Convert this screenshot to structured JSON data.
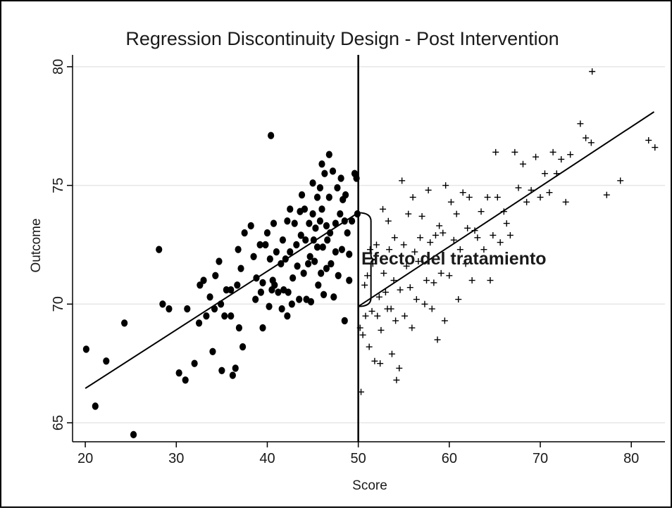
{
  "chart_data": {
    "type": "scatter",
    "title": "Regression Discontinuity Design - Post Intervention",
    "xlabel": "Score",
    "ylabel": "Outcome",
    "xlim": [
      18.6,
      83.7
    ],
    "ylim": [
      64.2,
      80.5
    ],
    "xticks": [
      20,
      30,
      40,
      50,
      60,
      70,
      80
    ],
    "yticks": [
      65,
      70,
      75,
      80
    ],
    "grid": "horizontal",
    "cutoff": 50,
    "annotation": "Efecto del tratamiento",
    "colors": {
      "marker": "#000000",
      "grid": "#e6e6e6",
      "background": "#ffffff"
    },
    "series": [
      {
        "marker": "filled-circle",
        "points": [
          [
            20.1,
            68.1
          ],
          [
            21.1,
            65.7
          ],
          [
            22.3,
            67.6
          ],
          [
            24.3,
            69.2
          ],
          [
            25.3,
            64.5
          ],
          [
            28.1,
            72.3
          ],
          [
            28.5,
            70.0
          ],
          [
            29.2,
            69.8
          ],
          [
            30.3,
            67.1
          ],
          [
            31.0,
            66.8
          ],
          [
            31.2,
            69.8
          ],
          [
            32.0,
            67.5
          ],
          [
            32.5,
            69.2
          ],
          [
            32.6,
            70.8
          ],
          [
            33.0,
            71.0
          ],
          [
            33.3,
            69.5
          ],
          [
            33.7,
            70.3
          ],
          [
            34.0,
            68.0
          ],
          [
            34.2,
            69.8
          ],
          [
            34.3,
            71.2
          ],
          [
            34.7,
            71.8
          ],
          [
            34.9,
            70.0
          ],
          [
            35.0,
            67.2
          ],
          [
            35.3,
            69.5
          ],
          [
            35.5,
            70.6
          ],
          [
            36.0,
            69.5
          ],
          [
            36.0,
            70.6
          ],
          [
            36.2,
            67.0
          ],
          [
            36.5,
            67.3
          ],
          [
            36.7,
            70.8
          ],
          [
            36.8,
            72.3
          ],
          [
            36.9,
            69.0
          ],
          [
            37.1,
            71.5
          ],
          [
            37.3,
            68.2
          ],
          [
            37.5,
            73.0
          ],
          [
            38.2,
            73.3
          ],
          [
            38.5,
            72.0
          ],
          [
            38.7,
            70.2
          ],
          [
            38.8,
            71.1
          ],
          [
            39.2,
            72.5
          ],
          [
            39.3,
            70.5
          ],
          [
            39.5,
            69.0
          ],
          [
            39.5,
            70.9
          ],
          [
            39.8,
            72.5
          ],
          [
            40.0,
            73.0
          ],
          [
            40.2,
            69.9
          ],
          [
            40.3,
            71.9
          ],
          [
            40.4,
            77.1
          ],
          [
            40.5,
            70.6
          ],
          [
            40.6,
            71.0
          ],
          [
            40.7,
            73.4
          ],
          [
            40.8,
            70.8
          ],
          [
            41.0,
            72.2
          ],
          [
            41.2,
            70.5
          ],
          [
            41.5,
            71.7
          ],
          [
            41.6,
            69.8
          ],
          [
            41.7,
            72.7
          ],
          [
            41.8,
            70.6
          ],
          [
            42.0,
            71.9
          ],
          [
            42.2,
            73.5
          ],
          [
            42.2,
            69.5
          ],
          [
            42.3,
            70.5
          ],
          [
            42.5,
            74.0
          ],
          [
            42.5,
            72.2
          ],
          [
            42.7,
            70.0
          ],
          [
            42.8,
            71.1
          ],
          [
            43.0,
            73.4
          ],
          [
            43.2,
            72.5
          ],
          [
            43.3,
            71.6
          ],
          [
            43.5,
            70.2
          ],
          [
            43.6,
            73.9
          ],
          [
            43.7,
            72.9
          ],
          [
            43.8,
            74.6
          ],
          [
            44.0,
            71.3
          ],
          [
            44.1,
            74.0
          ],
          [
            44.2,
            72.7
          ],
          [
            44.3,
            70.2
          ],
          [
            44.5,
            71.7
          ],
          [
            44.6,
            73.4
          ],
          [
            44.7,
            72.0
          ],
          [
            44.8,
            70.1
          ],
          [
            45.0,
            75.1
          ],
          [
            45.0,
            73.8
          ],
          [
            45.1,
            72.7
          ],
          [
            45.2,
            71.8
          ],
          [
            45.3,
            73.2
          ],
          [
            45.5,
            74.5
          ],
          [
            45.5,
            72.4
          ],
          [
            45.6,
            70.8
          ],
          [
            45.8,
            74.9
          ],
          [
            45.8,
            73.5
          ],
          [
            45.9,
            71.3
          ],
          [
            46.0,
            75.9
          ],
          [
            46.0,
            74.0
          ],
          [
            46.1,
            72.4
          ],
          [
            46.2,
            70.4
          ],
          [
            46.3,
            75.5
          ],
          [
            46.5,
            73.3
          ],
          [
            46.5,
            71.5
          ],
          [
            46.6,
            72.7
          ],
          [
            46.8,
            76.3
          ],
          [
            46.8,
            74.5
          ],
          [
            46.9,
            73.0
          ],
          [
            47.0,
            71.7
          ],
          [
            47.2,
            75.6
          ],
          [
            47.3,
            70.3
          ],
          [
            47.5,
            73.4
          ],
          [
            47.5,
            72.2
          ],
          [
            47.7,
            74.9
          ],
          [
            47.8,
            71.2
          ],
          [
            48.0,
            73.8
          ],
          [
            48.1,
            75.3
          ],
          [
            48.2,
            72.3
          ],
          [
            48.3,
            74.4
          ],
          [
            48.5,
            73.5
          ],
          [
            48.5,
            69.3
          ],
          [
            48.6,
            74.6
          ],
          [
            48.8,
            73.0
          ],
          [
            49.0,
            72.1
          ],
          [
            49.0,
            71.0
          ],
          [
            49.3,
            73.5
          ],
          [
            49.6,
            75.5
          ],
          [
            49.8,
            75.3
          ],
          [
            49.9,
            73.8
          ]
        ]
      },
      {
        "marker": "plus",
        "points": [
          [
            50.2,
            69.0
          ],
          [
            50.3,
            66.3
          ],
          [
            50.5,
            68.7
          ],
          [
            50.7,
            70.8
          ],
          [
            50.8,
            69.5
          ],
          [
            51.0,
            71.2
          ],
          [
            51.2,
            68.2
          ],
          [
            51.3,
            72.3
          ],
          [
            51.5,
            69.7
          ],
          [
            51.6,
            71.7
          ],
          [
            51.8,
            67.6
          ],
          [
            52.0,
            72.5
          ],
          [
            52.1,
            69.5
          ],
          [
            52.3,
            70.3
          ],
          [
            52.4,
            67.5
          ],
          [
            52.5,
            68.9
          ],
          [
            52.7,
            74.0
          ],
          [
            52.8,
            71.3
          ],
          [
            53.0,
            70.5
          ],
          [
            53.2,
            69.8
          ],
          [
            53.3,
            73.5
          ],
          [
            53.4,
            72.3
          ],
          [
            53.6,
            69.8
          ],
          [
            53.7,
            67.9
          ],
          [
            53.9,
            71.0
          ],
          [
            54.0,
            72.8
          ],
          [
            54.1,
            69.3
          ],
          [
            54.2,
            66.8
          ],
          [
            54.5,
            67.3
          ],
          [
            54.6,
            70.6
          ],
          [
            54.8,
            75.2
          ],
          [
            55.0,
            72.5
          ],
          [
            55.1,
            69.5
          ],
          [
            55.3,
            71.6
          ],
          [
            55.5,
            73.8
          ],
          [
            55.7,
            70.7
          ],
          [
            55.9,
            69.0
          ],
          [
            56.0,
            74.5
          ],
          [
            56.2,
            72.2
          ],
          [
            56.4,
            70.2
          ],
          [
            56.6,
            71.8
          ],
          [
            56.8,
            72.8
          ],
          [
            57.0,
            73.7
          ],
          [
            57.3,
            70.0
          ],
          [
            57.5,
            71.0
          ],
          [
            57.7,
            74.8
          ],
          [
            57.9,
            72.6
          ],
          [
            58.1,
            69.8
          ],
          [
            58.3,
            70.9
          ],
          [
            58.5,
            72.9
          ],
          [
            58.7,
            68.5
          ],
          [
            58.9,
            73.3
          ],
          [
            59.1,
            71.3
          ],
          [
            59.3,
            73.0
          ],
          [
            59.5,
            69.3
          ],
          [
            59.6,
            75.0
          ],
          [
            60.0,
            71.2
          ],
          [
            60.2,
            74.3
          ],
          [
            60.5,
            72.7
          ],
          [
            60.8,
            73.8
          ],
          [
            61.0,
            70.2
          ],
          [
            61.2,
            72.3
          ],
          [
            61.5,
            74.7
          ],
          [
            61.8,
            71.7
          ],
          [
            62.0,
            73.2
          ],
          [
            62.2,
            74.5
          ],
          [
            62.5,
            71.0
          ],
          [
            62.8,
            73.1
          ],
          [
            63.1,
            72.8
          ],
          [
            63.5,
            73.9
          ],
          [
            63.8,
            72.3
          ],
          [
            64.2,
            74.5
          ],
          [
            64.5,
            71.0
          ],
          [
            64.8,
            72.9
          ],
          [
            65.1,
            76.4
          ],
          [
            65.3,
            74.5
          ],
          [
            65.6,
            72.6
          ],
          [
            66.0,
            73.9
          ],
          [
            66.3,
            73.4
          ],
          [
            66.7,
            72.9
          ],
          [
            67.2,
            76.4
          ],
          [
            67.6,
            74.9
          ],
          [
            68.1,
            75.9
          ],
          [
            68.5,
            74.3
          ],
          [
            69.0,
            74.8
          ],
          [
            69.5,
            76.2
          ],
          [
            70.0,
            74.5
          ],
          [
            70.5,
            75.5
          ],
          [
            71.0,
            74.7
          ],
          [
            71.4,
            76.4
          ],
          [
            71.8,
            75.5
          ],
          [
            72.3,
            76.1
          ],
          [
            72.8,
            74.3
          ],
          [
            73.3,
            76.3
          ],
          [
            74.4,
            77.6
          ],
          [
            75.0,
            77.0
          ],
          [
            75.6,
            76.8
          ],
          [
            75.7,
            79.8
          ],
          [
            77.3,
            74.6
          ],
          [
            78.8,
            75.2
          ],
          [
            81.9,
            76.9
          ],
          [
            82.6,
            76.6
          ]
        ]
      }
    ],
    "fits": [
      {
        "x": [
          20.0,
          50.0
        ],
        "y": [
          66.45,
          73.85
        ]
      },
      {
        "x": [
          50.0,
          82.5
        ],
        "y": [
          69.9,
          78.1
        ]
      }
    ]
  }
}
